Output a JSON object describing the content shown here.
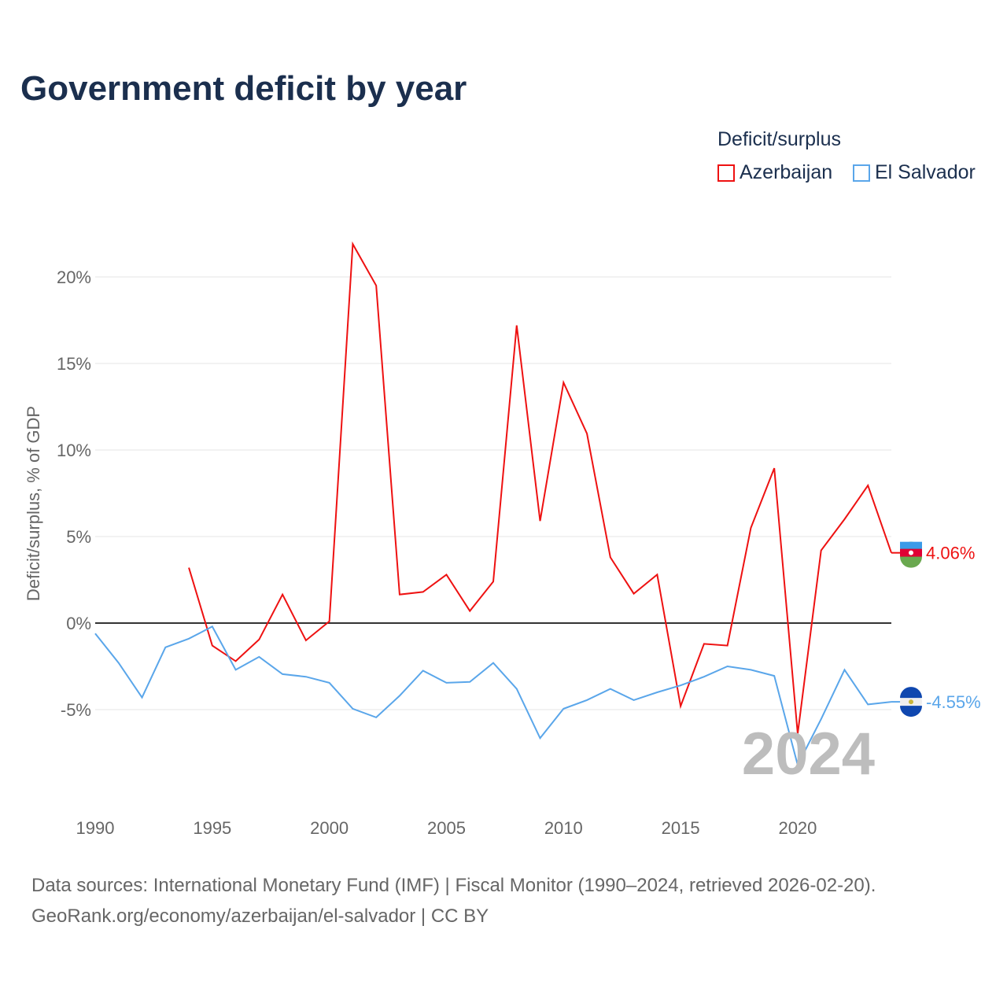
{
  "title": "Government deficit by year",
  "legend": {
    "title": "Deficit/surplus",
    "items": [
      "Azerbaijan",
      "El Salvador"
    ]
  },
  "source": {
    "line1": "Data sources: International Monetary Fund (IMF) | Fiscal Monitor (1990–2024, retrieved 2026-02-20).",
    "line2": "GeoRank.org/economy/azerbaijan/el-salvador | CC BY"
  },
  "chart_data": {
    "type": "line",
    "title": "Government deficit by year",
    "xlabel": "",
    "ylabel": "Deficit/surplus, % of GDP",
    "xlim": [
      1990,
      2024
    ],
    "ylim": [
      -10,
      25
    ],
    "x_ticks": [
      "1990",
      "1995",
      "2000",
      "2005",
      "2010",
      "2015",
      "2020"
    ],
    "y_ticks": [
      "-5%",
      "0%",
      "5%",
      "10%",
      "15%",
      "20%"
    ],
    "year_watermark": "2024",
    "series": [
      {
        "name": "Azerbaijan",
        "color": "#ee1111",
        "end_label": "4.06%",
        "x": [
          1994,
          1995,
          1996,
          1997,
          1998,
          1999,
          2000,
          2001,
          2002,
          2003,
          2004,
          2005,
          2006,
          2007,
          2008,
          2009,
          2010,
          2011,
          2012,
          2013,
          2014,
          2015,
          2016,
          2017,
          2018,
          2019,
          2020,
          2021,
          2022,
          2023,
          2024
        ],
        "values": [
          3.2,
          -1.3,
          -2.2,
          -0.95,
          1.65,
          -1.0,
          0.1,
          21.9,
          19.5,
          1.65,
          1.8,
          2.8,
          0.7,
          2.4,
          17.2,
          5.9,
          13.9,
          10.95,
          3.8,
          1.7,
          2.8,
          -4.8,
          -1.2,
          -1.3,
          5.5,
          8.95,
          -6.4,
          4.2,
          6.0,
          7.95,
          4.06
        ]
      },
      {
        "name": "El Salvador",
        "color": "#5aa6ea",
        "end_label": "-4.55%",
        "x": [
          1990,
          1991,
          1992,
          1993,
          1994,
          1995,
          1996,
          1997,
          1998,
          1999,
          2000,
          2001,
          2002,
          2003,
          2004,
          2005,
          2006,
          2007,
          2008,
          2009,
          2010,
          2011,
          2012,
          2013,
          2014,
          2015,
          2016,
          2017,
          2018,
          2019,
          2020,
          2021,
          2022,
          2023,
          2024
        ],
        "values": [
          -0.6,
          -2.3,
          -4.3,
          -1.4,
          -0.9,
          -0.2,
          -2.7,
          -1.95,
          -2.95,
          -3.1,
          -3.45,
          -4.95,
          -5.45,
          -4.2,
          -2.75,
          -3.45,
          -3.4,
          -2.3,
          -3.8,
          -6.65,
          -4.95,
          -4.45,
          -3.8,
          -4.45,
          -4.0,
          -3.6,
          -3.1,
          -2.5,
          -2.7,
          -3.05,
          -8.2,
          -5.55,
          -2.7,
          -4.7,
          -4.55
        ]
      }
    ]
  }
}
